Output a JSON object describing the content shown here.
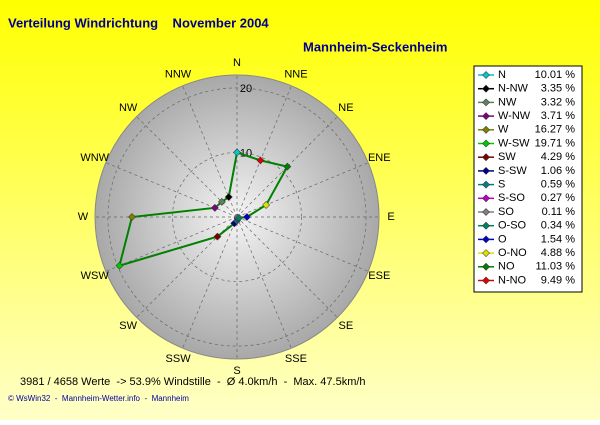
{
  "chart_data": {
    "type": "radar",
    "title": "Verteilung Windrichtung    November 2004",
    "subtitle": "Mannheim-Seckenheim",
    "direction_labels": [
      "N",
      "NNE",
      "NE",
      "ENE",
      "E",
      "ESE",
      "SE",
      "SSE",
      "S",
      "SSW",
      "SW",
      "WSW",
      "W",
      "WNW",
      "NW",
      "NNW"
    ],
    "legend_names": [
      "N",
      "N-NW",
      "NW",
      "W-NW",
      "W",
      "W-SW",
      "SW",
      "S-SW",
      "S",
      "S-SO",
      "SO",
      "O-SO",
      "O",
      "O-NO",
      "NO",
      "N-NO"
    ],
    "values": [
      10.01,
      3.35,
      3.32,
      3.71,
      16.27,
      19.71,
      4.29,
      1.06,
      0.59,
      0.27,
      0.11,
      0.34,
      1.54,
      4.88,
      11.03,
      9.49
    ],
    "value_labels": [
      "10.01 %",
      "3.35 %",
      "3.32 %",
      "3.71 %",
      "16.27 %",
      "19.71 %",
      "4.29 %",
      "1.06 %",
      "0.59 %",
      "0.27 %",
      "0.11 %",
      "0.34 %",
      "1.54 %",
      "4.88 %",
      "11.03 %",
      "9.49 %"
    ],
    "point_colors": [
      "#00c8c8",
      "#000000",
      "#608060",
      "#800080",
      "#808000",
      "#00c800",
      "#800000",
      "#000080",
      "#008080",
      "#c000c0",
      "#808080",
      "#008060",
      "#0000c8",
      "#e0e000",
      "#008000",
      "#e00000"
    ],
    "line_color": "#008000",
    "rlim": [
      0,
      22
    ],
    "rticks": [
      10,
      20
    ],
    "footer": "3981 / 4658 Werte  -> 53.9% Windstille  -  Ø 4.0km/h  -  Max. 47.5km/h",
    "credit": "© WsWin32  -  Mannheim-Wetter.info  -  Mannheim"
  }
}
